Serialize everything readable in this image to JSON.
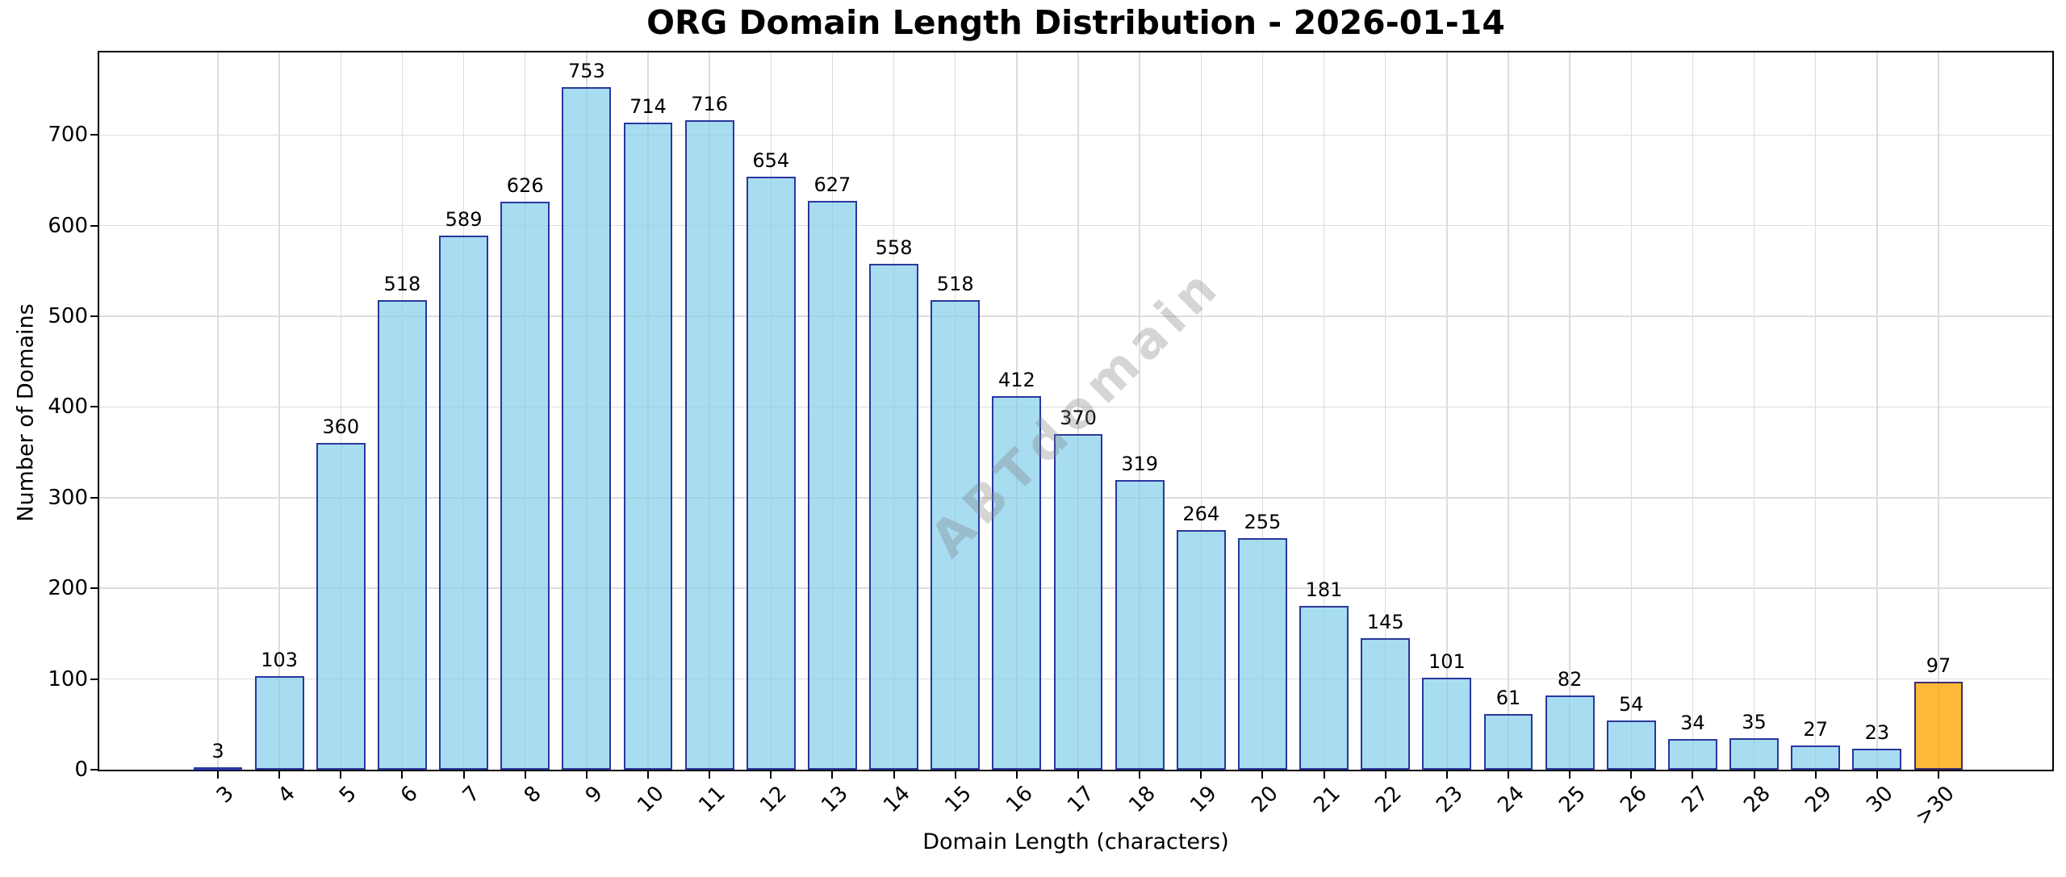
{
  "title": "ORG Domain Length Distribution - 2026-01-14",
  "watermark": {
    "text": "ABTdomain"
  },
  "chart_data": {
    "type": "bar",
    "title": "ORG Domain Length Distribution - 2026-01-14",
    "xlabel": "Domain Length (characters)",
    "ylabel": "Number of Domains",
    "categories": [
      "3",
      "4",
      "5",
      "6",
      "7",
      "8",
      "9",
      "10",
      "11",
      "12",
      "13",
      "14",
      "15",
      "16",
      "17",
      "18",
      "19",
      "20",
      "21",
      "22",
      "23",
      "24",
      "25",
      "26",
      "27",
      "28",
      "29",
      "30",
      ">30"
    ],
    "values": [
      3,
      103,
      360,
      518,
      589,
      626,
      753,
      714,
      716,
      654,
      627,
      558,
      518,
      412,
      370,
      319,
      264,
      255,
      181,
      145,
      101,
      61,
      82,
      54,
      34,
      35,
      27,
      23,
      97
    ],
    "bar_value_labels_shown": true,
    "ylim": [
      0,
      791
    ],
    "yticks": [
      0,
      100,
      200,
      300,
      400,
      500,
      600,
      700
    ],
    "grid": "both",
    "x_tick_rotation_deg": -45,
    "legend": "none",
    "colors": {
      "bar_fill": "rgba(135,206,235,0.72)",
      "bar_edge": "rgba(0,0,128,0.75)",
      "highlight_fill": "rgba(255,165,0,0.78)",
      "highlight_category": ">30",
      "highlight_index": 28,
      "grid": "#dcdcdc",
      "spine": "#000000",
      "text": "#000000",
      "watermark": "rgba(128,128,128,0.33)"
    }
  }
}
